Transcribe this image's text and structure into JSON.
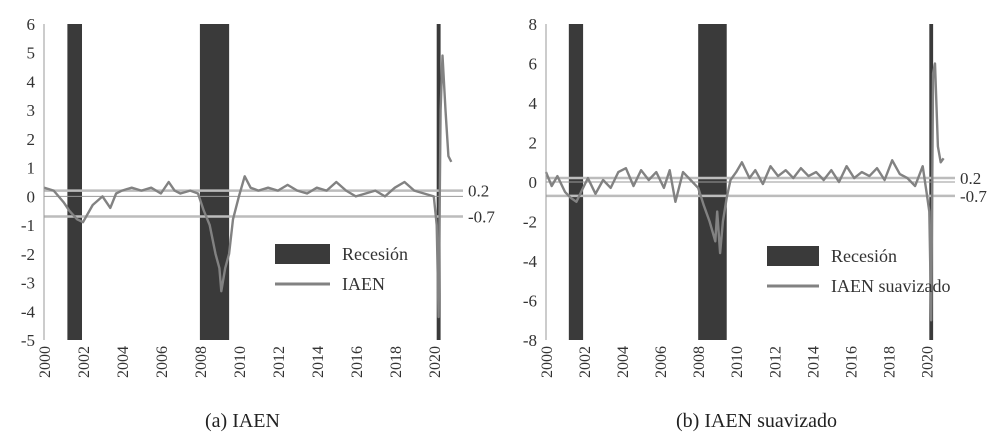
{
  "colors": {
    "recession": "#3a3a3a",
    "series": "#828282",
    "refline": "#bcbcbc",
    "axis": "#999999"
  },
  "captions": [
    "(a)  IAEN",
    "(b)  IAEN suavizado"
  ],
  "chart_data": [
    {
      "type": "line",
      "title": "",
      "caption": "(a)  IAEN",
      "xlabel": "",
      "ylabel": "",
      "xlim": [
        2000,
        2021.5
      ],
      "ylim": [
        -5,
        6
      ],
      "yticks": [
        "6",
        "5",
        "4",
        "3",
        "2",
        "1",
        "0",
        "-1",
        "-2",
        "-3",
        "-4",
        "-5"
      ],
      "xticks": [
        "2000",
        "2002",
        "2004",
        "2006",
        "2008",
        "2010",
        "2012",
        "2014",
        "2016",
        "2018",
        "2020"
      ],
      "grid": false,
      "legend": {
        "position": "lower-right",
        "entries": [
          "Recesión",
          "IAEN"
        ]
      },
      "recessions": [
        [
          2001.2,
          2001.95
        ],
        [
          2008.0,
          2009.5
        ],
        [
          2020.15,
          2020.35
        ]
      ],
      "reference_lines": [
        {
          "y": 0.2,
          "label": "0.2"
        },
        {
          "y": -0.7,
          "label": "-0.7"
        }
      ],
      "series": [
        {
          "name": "IAEN",
          "x": [
            2000.0,
            2000.5,
            2001.0,
            2001.3,
            2001.7,
            2002.0,
            2002.5,
            2003.0,
            2003.4,
            2003.7,
            2004.0,
            2004.5,
            2005.0,
            2005.5,
            2006.0,
            2006.4,
            2006.7,
            2007.0,
            2007.5,
            2007.9,
            2008.2,
            2008.5,
            2008.8,
            2009.0,
            2009.1,
            2009.3,
            2009.5,
            2009.7,
            2010.0,
            2010.3,
            2010.6,
            2011.0,
            2011.5,
            2012.0,
            2012.5,
            2013.0,
            2013.5,
            2014.0,
            2014.5,
            2015.0,
            2015.5,
            2016.0,
            2016.5,
            2017.0,
            2017.5,
            2018.0,
            2018.5,
            2019.0,
            2019.5,
            2020.0,
            2020.15,
            2020.25,
            2020.35,
            2020.45,
            2020.6,
            2020.75,
            2020.9
          ],
          "y": [
            0.3,
            0.2,
            -0.2,
            -0.5,
            -0.8,
            -0.9,
            -0.3,
            0.0,
            -0.4,
            0.1,
            0.2,
            0.3,
            0.2,
            0.3,
            0.1,
            0.5,
            0.2,
            0.1,
            0.2,
            0.1,
            -0.5,
            -1.0,
            -2.0,
            -2.5,
            -3.3,
            -2.5,
            -2.0,
            -0.8,
            0.0,
            0.7,
            0.3,
            0.2,
            0.3,
            0.2,
            0.4,
            0.2,
            0.1,
            0.3,
            0.2,
            0.5,
            0.2,
            0.0,
            0.1,
            0.2,
            0.0,
            0.3,
            0.5,
            0.2,
            0.1,
            0.0,
            -1.0,
            -4.2,
            3.0,
            4.9,
            3.0,
            1.4,
            1.2
          ]
        }
      ]
    },
    {
      "type": "line",
      "title": "",
      "caption": "(b)  IAEN suavizado",
      "xlabel": "",
      "ylabel": "",
      "xlim": [
        2000,
        2021.5
      ],
      "ylim": [
        -8,
        8
      ],
      "yticks": [
        "8",
        "6",
        "4",
        "2",
        "0",
        "-2",
        "-4",
        "-6",
        "-8"
      ],
      "xticks": [
        "2000",
        "2002",
        "2004",
        "2006",
        "2008",
        "2010",
        "2012",
        "2014",
        "2016",
        "2018",
        "2020"
      ],
      "grid": false,
      "legend": {
        "position": "lower-right",
        "entries": [
          "Recesión",
          "IAEN suavizado"
        ]
      },
      "recessions": [
        [
          2001.2,
          2001.95
        ],
        [
          2008.0,
          2009.5
        ],
        [
          2020.15,
          2020.35
        ]
      ],
      "reference_lines": [
        {
          "y": 0.2,
          "label": "0.2"
        },
        {
          "y": -0.7,
          "label": "-0.7"
        }
      ],
      "series": [
        {
          "name": "IAEN suavizado",
          "x": [
            2000.0,
            2000.3,
            2000.6,
            2001.0,
            2001.3,
            2001.6,
            2001.9,
            2002.2,
            2002.6,
            2003.0,
            2003.4,
            2003.8,
            2004.2,
            2004.6,
            2005.0,
            2005.4,
            2005.8,
            2006.2,
            2006.5,
            2006.8,
            2007.2,
            2007.6,
            2008.0,
            2008.3,
            2008.6,
            2008.9,
            2009.0,
            2009.15,
            2009.3,
            2009.5,
            2009.7,
            2010.0,
            2010.3,
            2010.7,
            2011.0,
            2011.4,
            2011.8,
            2012.2,
            2012.6,
            2013.0,
            2013.4,
            2013.8,
            2014.2,
            2014.6,
            2015.0,
            2015.4,
            2015.8,
            2016.2,
            2016.6,
            2017.0,
            2017.4,
            2017.8,
            2018.2,
            2018.6,
            2019.0,
            2019.4,
            2019.8,
            2020.0,
            2020.15,
            2020.25,
            2020.35,
            2020.45,
            2020.6,
            2020.75,
            2020.9
          ],
          "y": [
            0.5,
            -0.2,
            0.3,
            -0.5,
            -0.8,
            -1.0,
            -0.4,
            0.2,
            -0.6,
            0.1,
            -0.3,
            0.5,
            0.7,
            -0.2,
            0.6,
            0.1,
            0.5,
            -0.3,
            0.6,
            -1.0,
            0.5,
            0.1,
            -0.3,
            -1.2,
            -2.0,
            -3.0,
            -1.5,
            -3.6,
            -2.0,
            -0.8,
            0.1,
            0.5,
            1.0,
            0.2,
            0.6,
            -0.1,
            0.8,
            0.3,
            0.6,
            0.2,
            0.7,
            0.3,
            0.5,
            0.1,
            0.6,
            0.0,
            0.8,
            0.2,
            0.5,
            0.3,
            0.7,
            0.1,
            1.1,
            0.4,
            0.2,
            -0.2,
            0.8,
            -0.5,
            -1.5,
            -7.0,
            5.5,
            6.0,
            1.8,
            1.0,
            1.2
          ]
        }
      ]
    }
  ]
}
